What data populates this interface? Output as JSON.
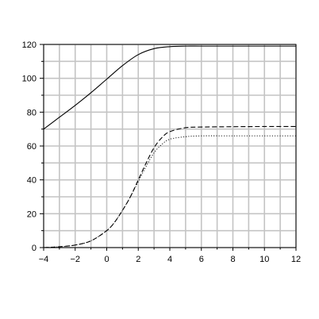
{
  "chart_data": {
    "type": "line",
    "title": "",
    "xlabel": "",
    "ylabel": "",
    "xlim": [
      -4,
      12
    ],
    "ylim": [
      0,
      120
    ],
    "grid": true,
    "x_ticks": [
      -4,
      -2,
      0,
      2,
      4,
      6,
      8,
      10,
      12
    ],
    "x_tick_labels": [
      "−4",
      "−2",
      "0",
      "2",
      "4",
      "6",
      "8",
      "10",
      "12"
    ],
    "y_ticks": [
      0,
      20,
      40,
      60,
      80,
      100,
      120
    ],
    "y_tick_labels": [
      "0",
      "20",
      "40",
      "60",
      "80",
      "100",
      "120"
    ],
    "series": [
      {
        "style": "solid",
        "x": [
          -4,
          -3,
          -2,
          -1,
          0,
          1,
          2,
          3,
          4,
          5,
          6,
          8,
          10,
          12
        ],
        "y": [
          70,
          77,
          84,
          91.5,
          99.5,
          107.5,
          114,
          117.5,
          118.7,
          119,
          119,
          119,
          119,
          119
        ]
      },
      {
        "style": "dashed",
        "x": [
          -4,
          -3,
          -2,
          -1,
          0,
          0.5,
          1,
          1.5,
          2,
          2.5,
          3,
          3.5,
          4,
          5,
          6,
          8,
          10,
          12
        ],
        "y": [
          0,
          0.5,
          1.5,
          4,
          10,
          15,
          22,
          30,
          40,
          50,
          59,
          65,
          68.5,
          70.8,
          71.2,
          71.4,
          71.5,
          71.5
        ]
      },
      {
        "style": "dotted",
        "x": [
          -4,
          -3,
          -2,
          -1,
          0,
          0.5,
          1,
          1.5,
          2,
          2.5,
          3,
          3.5,
          4,
          5,
          6,
          8,
          10,
          12
        ],
        "y": [
          0,
          0.5,
          1.5,
          4,
          10,
          15,
          22,
          30,
          39,
          48,
          56,
          61,
          64,
          65.5,
          66,
          66,
          66,
          66
        ]
      }
    ]
  }
}
